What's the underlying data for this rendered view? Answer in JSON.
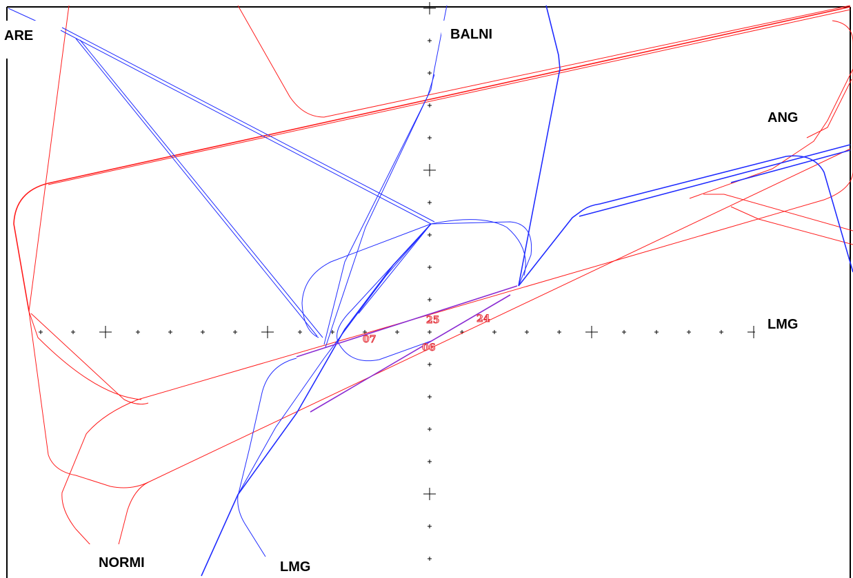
{
  "waypoints": [
    {
      "id": "are",
      "label": "ARE"
    },
    {
      "id": "balni",
      "label": "BALNI"
    },
    {
      "id": "ang",
      "label": "ANG"
    },
    {
      "id": "lmg-east",
      "label": "LMG"
    },
    {
      "id": "normi",
      "label": "NORMI"
    },
    {
      "id": "lmg-south",
      "label": "LMG"
    }
  ],
  "runways": [
    {
      "id": "25",
      "label": "25"
    },
    {
      "id": "24",
      "label": "24"
    },
    {
      "id": "07",
      "label": "07"
    },
    {
      "id": "06",
      "label": "06"
    }
  ],
  "colors": {
    "departure_routes": "#1f2bff",
    "arrival_routes": "#ff1b1b",
    "runway_labels": "#e0303a",
    "axes": "#000000"
  }
}
